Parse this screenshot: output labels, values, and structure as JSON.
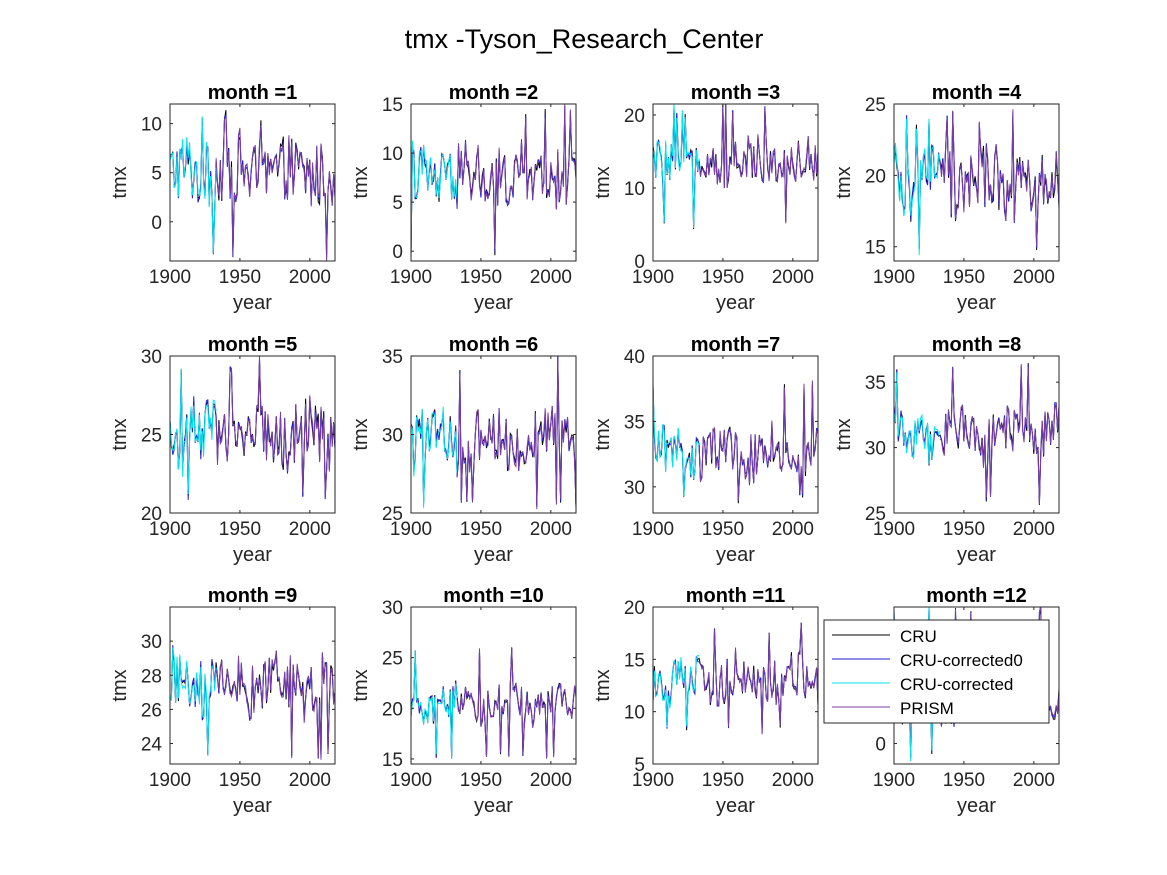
{
  "figure": {
    "title": "tmx -Tyson_Research_Center"
  },
  "colors": {
    "CRU": "#000000",
    "CRU-corrected0": "#1f1fd6",
    "CRU-corrected": "#00e5ee",
    "PRISM": "#7b3fa3"
  },
  "legend": {
    "placement": "overlaps month 12 panel, top-left",
    "entries": [
      "CRU",
      "CRU-corrected0",
      "CRU-corrected",
      "PRISM"
    ]
  },
  "chart_data": [
    {
      "type": "line",
      "title": "month =1",
      "xlabel": "year",
      "ylabel": "tmx",
      "xlim": [
        1900,
        2018
      ],
      "ylim": [
        -4,
        12
      ],
      "yticks": [
        0,
        5,
        10
      ],
      "xticks": [
        1900,
        1950,
        2000
      ],
      "base": 5,
      "amp": 3.2,
      "spike_lo": -4,
      "spike_hi": 11.5,
      "series": [
        {
          "name": "CRU",
          "period": [
            1900,
            2018
          ]
        },
        {
          "name": "CRU-corrected0",
          "period": [
            1900,
            2018
          ]
        },
        {
          "name": "CRU-corrected",
          "period": [
            1900,
            1933
          ]
        },
        {
          "name": "PRISM",
          "period": [
            1933,
            2018
          ]
        }
      ]
    },
    {
      "type": "line",
      "title": "month =2",
      "xlabel": "year",
      "ylabel": "tmx",
      "xlim": [
        1900,
        2018
      ],
      "ylim": [
        -1,
        15
      ],
      "yticks": [
        0,
        5,
        10,
        15
      ],
      "xticks": [
        1900,
        1950,
        2000
      ],
      "base": 7.5,
      "amp": 3,
      "spike_lo": -1,
      "spike_hi": 15,
      "series": [
        {
          "name": "CRU",
          "period": [
            1900,
            2018
          ]
        },
        {
          "name": "CRU-corrected0",
          "period": [
            1900,
            2018
          ]
        },
        {
          "name": "CRU-corrected",
          "period": [
            1900,
            1933
          ]
        },
        {
          "name": "PRISM",
          "period": [
            1933,
            2018
          ]
        }
      ]
    },
    {
      "type": "line",
      "title": "month =3",
      "xlabel": "year",
      "ylabel": "tmx",
      "xlim": [
        1900,
        2018
      ],
      "ylim": [
        0,
        21.5
      ],
      "yticks": [
        0,
        10,
        20
      ],
      "xticks": [
        1900,
        1950,
        2000
      ],
      "base": 13.5,
      "amp": 3,
      "spike_lo": 4,
      "spike_hi": 21.5,
      "series": [
        {
          "name": "CRU",
          "period": [
            1900,
            2018
          ]
        },
        {
          "name": "CRU-corrected0",
          "period": [
            1900,
            2018
          ]
        },
        {
          "name": "CRU-corrected",
          "period": [
            1900,
            1933
          ]
        },
        {
          "name": "PRISM",
          "period": [
            1933,
            2018
          ]
        }
      ]
    },
    {
      "type": "line",
      "title": "month =4",
      "xlabel": "year",
      "ylabel": "tmx",
      "xlim": [
        1900,
        2018
      ],
      "ylim": [
        14,
        25
      ],
      "yticks": [
        15,
        20,
        25
      ],
      "xticks": [
        1900,
        1950,
        2000
      ],
      "base": 19.5,
      "amp": 2.3,
      "spike_lo": 14.5,
      "spike_hi": 24.5,
      "series": [
        {
          "name": "CRU",
          "period": [
            1900,
            2018
          ]
        },
        {
          "name": "CRU-corrected0",
          "period": [
            1900,
            2018
          ]
        },
        {
          "name": "CRU-corrected",
          "period": [
            1900,
            1933
          ]
        },
        {
          "name": "PRISM",
          "period": [
            1933,
            2018
          ]
        }
      ]
    },
    {
      "type": "line",
      "title": "month =5",
      "xlabel": "year",
      "ylabel": "tmx",
      "xlim": [
        1900,
        2018
      ],
      "ylim": [
        20,
        30
      ],
      "yticks": [
        20,
        25,
        30
      ],
      "xticks": [
        1900,
        1950,
        2000
      ],
      "base": 25,
      "amp": 1.9,
      "spike_lo": 20.7,
      "spike_hi": 29.8,
      "series": [
        {
          "name": "CRU",
          "period": [
            1900,
            2018
          ]
        },
        {
          "name": "CRU-corrected0",
          "period": [
            1900,
            2018
          ]
        },
        {
          "name": "CRU-corrected",
          "period": [
            1900,
            1933
          ]
        },
        {
          "name": "PRISM",
          "period": [
            1933,
            2018
          ]
        }
      ]
    },
    {
      "type": "line",
      "title": "month =6",
      "xlabel": "year",
      "ylabel": "tmx",
      "xlim": [
        1900,
        2018
      ],
      "ylim": [
        25,
        35
      ],
      "yticks": [
        25,
        30,
        35
      ],
      "xticks": [
        1900,
        1950,
        2000
      ],
      "base": 29.8,
      "amp": 1.8,
      "spike_lo": 25.2,
      "spike_hi": 35,
      "series": [
        {
          "name": "CRU",
          "period": [
            1900,
            2018
          ]
        },
        {
          "name": "CRU-corrected0",
          "period": [
            1900,
            2018
          ]
        },
        {
          "name": "CRU-corrected",
          "period": [
            1900,
            1933
          ]
        },
        {
          "name": "PRISM",
          "period": [
            1933,
            2018
          ]
        }
      ]
    },
    {
      "type": "line",
      "title": "month =7",
      "xlabel": "year",
      "ylabel": "tmx",
      "xlim": [
        1900,
        2018
      ],
      "ylim": [
        28,
        40
      ],
      "yticks": [
        30,
        35,
        40
      ],
      "xticks": [
        1900,
        1950,
        2000
      ],
      "base": 32.5,
      "amp": 1.8,
      "spike_lo": 28.5,
      "spike_hi": 38,
      "series": [
        {
          "name": "CRU",
          "period": [
            1900,
            2018
          ]
        },
        {
          "name": "CRU-corrected0",
          "period": [
            1900,
            2018
          ]
        },
        {
          "name": "CRU-corrected",
          "period": [
            1900,
            1933
          ]
        },
        {
          "name": "PRISM",
          "period": [
            1933,
            2018
          ]
        }
      ]
    },
    {
      "type": "line",
      "title": "month =8",
      "xlabel": "year",
      "ylabel": "tmx",
      "xlim": [
        1900,
        2018
      ],
      "ylim": [
        25,
        37
      ],
      "yticks": [
        25,
        30,
        35
      ],
      "xticks": [
        1900,
        1950,
        2000
      ],
      "base": 31,
      "amp": 1.8,
      "spike_lo": 25.5,
      "spike_hi": 36.8,
      "series": [
        {
          "name": "CRU",
          "period": [
            1900,
            2018
          ]
        },
        {
          "name": "CRU-corrected0",
          "period": [
            1900,
            2018
          ]
        },
        {
          "name": "CRU-corrected",
          "period": [
            1900,
            1933
          ]
        },
        {
          "name": "PRISM",
          "period": [
            1933,
            2018
          ]
        }
      ]
    },
    {
      "type": "line",
      "title": "month =9",
      "xlabel": "year",
      "ylabel": "tmx",
      "xlim": [
        1900,
        2018
      ],
      "ylim": [
        22.8,
        32
      ],
      "yticks": [
        24,
        26,
        28,
        30
      ],
      "xticks": [
        1900,
        1950,
        2000
      ],
      "base": 27.5,
      "amp": 1.6,
      "spike_lo": 23,
      "spike_hi": 31.8,
      "series": [
        {
          "name": "CRU",
          "period": [
            1900,
            2018
          ]
        },
        {
          "name": "CRU-corrected0",
          "period": [
            1900,
            2018
          ]
        },
        {
          "name": "CRU-corrected",
          "period": [
            1900,
            1933
          ]
        },
        {
          "name": "PRISM",
          "period": [
            1933,
            2018
          ]
        }
      ]
    },
    {
      "type": "line",
      "title": "month =10",
      "xlabel": "year",
      "ylabel": "tmx",
      "xlim": [
        1900,
        2018
      ],
      "ylim": [
        14.5,
        30
      ],
      "yticks": [
        15,
        20,
        25,
        30
      ],
      "xticks": [
        1900,
        1950,
        2000
      ],
      "base": 20.5,
      "amp": 1.7,
      "spike_lo": 15,
      "spike_hi": 26,
      "series": [
        {
          "name": "CRU",
          "period": [
            1900,
            2018
          ]
        },
        {
          "name": "CRU-corrected0",
          "period": [
            1900,
            2018
          ]
        },
        {
          "name": "CRU-corrected",
          "period": [
            1900,
            1933
          ]
        },
        {
          "name": "PRISM",
          "period": [
            1933,
            2018
          ]
        }
      ]
    },
    {
      "type": "line",
      "title": "month =11",
      "xlabel": "year",
      "ylabel": "tmx",
      "xlim": [
        1900,
        2018
      ],
      "ylim": [
        5,
        20
      ],
      "yticks": [
        5,
        10,
        15,
        20
      ],
      "xticks": [
        1900,
        1950,
        2000
      ],
      "base": 13,
      "amp": 2.1,
      "spike_lo": 8,
      "spike_hi": 18.5,
      "series": [
        {
          "name": "CRU",
          "period": [
            1900,
            2018
          ]
        },
        {
          "name": "CRU-corrected0",
          "period": [
            1900,
            2018
          ]
        },
        {
          "name": "CRU-corrected",
          "period": [
            1900,
            1933
          ]
        },
        {
          "name": "PRISM",
          "period": [
            1933,
            2018
          ]
        }
      ]
    },
    {
      "type": "line",
      "title": "month =12",
      "xlabel": "year",
      "ylabel": "",
      "xlim": [
        1900,
        2018
      ],
      "ylim": [
        -3,
        20
      ],
      "yticks": [
        0
      ],
      "xticks": [
        1900,
        1950,
        2000
      ],
      "base": 6,
      "amp": 3,
      "spike_lo": -3,
      "spike_hi": 20,
      "series": [
        {
          "name": "CRU",
          "period": [
            1900,
            2018
          ]
        },
        {
          "name": "CRU-corrected0",
          "period": [
            1900,
            2018
          ]
        },
        {
          "name": "CRU-corrected",
          "period": [
            1900,
            1933
          ]
        },
        {
          "name": "PRISM",
          "period": [
            1933,
            2018
          ]
        }
      ]
    }
  ]
}
